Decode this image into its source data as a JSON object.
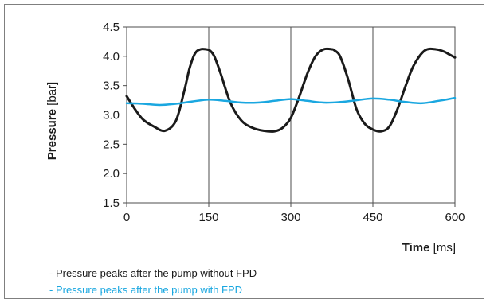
{
  "chart_data": {
    "type": "line",
    "xlabel_bold": "Time",
    "xlabel_unit": "[ms]",
    "ylabel_bold": "Pressure",
    "ylabel_unit": "[bar]",
    "xlim": [
      0,
      600
    ],
    "ylim": [
      1.5,
      4.5
    ],
    "xticks": [
      "0",
      "150",
      "300",
      "450",
      "600"
    ],
    "yticks": [
      "1.5",
      "2.0",
      "2.5",
      "3.0",
      "3.5",
      "4.0",
      "4.5"
    ],
    "grid": "vertical",
    "series": [
      {
        "name": "- Pressure peaks after the pump without FPD",
        "color": "#1a1a1a",
        "x": [
          0,
          15,
          30,
          50,
          70,
          90,
          105,
          115,
          125,
          135,
          145,
          152,
          160,
          172,
          190,
          210,
          230,
          250,
          270,
          285,
          300,
          315,
          330,
          345,
          360,
          375,
          380,
          390,
          405,
          420,
          435,
          450,
          465,
          480,
          495,
          510,
          525,
          545,
          565,
          580,
          590,
          600
        ],
        "y": [
          3.32,
          3.1,
          2.92,
          2.8,
          2.73,
          2.9,
          3.4,
          3.8,
          4.05,
          4.12,
          4.12,
          4.1,
          4.0,
          3.7,
          3.2,
          2.9,
          2.78,
          2.73,
          2.72,
          2.78,
          2.95,
          3.3,
          3.7,
          4.0,
          4.12,
          4.12,
          4.1,
          4.0,
          3.6,
          3.1,
          2.85,
          2.75,
          2.72,
          2.8,
          3.1,
          3.5,
          3.85,
          4.1,
          4.12,
          4.08,
          4.03,
          3.98
        ]
      },
      {
        "name": "- Pressure peaks after the pump with FPD",
        "color": "#1aa7e0",
        "x": [
          0,
          30,
          60,
          90,
          120,
          150,
          180,
          210,
          240,
          270,
          300,
          330,
          360,
          390,
          420,
          450,
          480,
          510,
          540,
          570,
          600
        ],
        "y": [
          3.2,
          3.19,
          3.17,
          3.19,
          3.23,
          3.26,
          3.24,
          3.21,
          3.21,
          3.24,
          3.27,
          3.24,
          3.21,
          3.22,
          3.25,
          3.28,
          3.26,
          3.22,
          3.2,
          3.24,
          3.29
        ]
      }
    ]
  }
}
